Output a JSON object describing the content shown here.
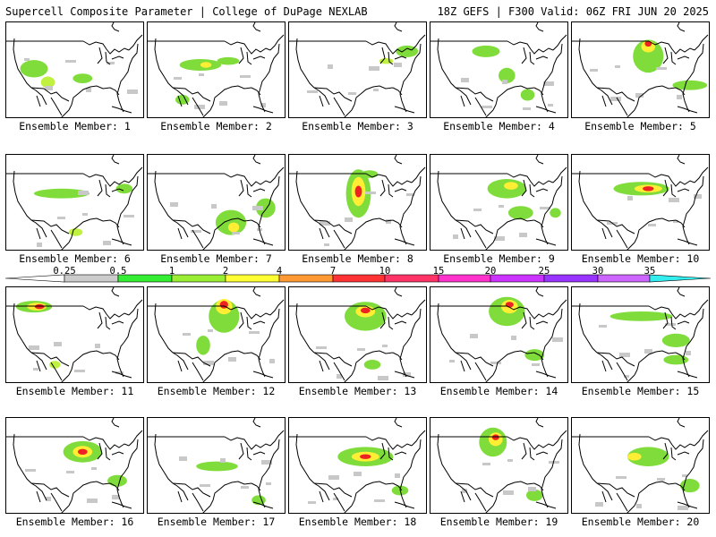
{
  "header": {
    "title": "Supercell Composite Parameter | College of DuPage NEXLAB",
    "run_info": "18Z GEFS | F300 Valid: 06Z FRI JUN 20 2025"
  },
  "members": [
    {
      "label": "Ensemble Member: 1",
      "blobs": [
        [
          0.2,
          0.48,
          0.2,
          0.18,
          "#7fdc3a"
        ],
        [
          0.3,
          0.62,
          0.1,
          0.12,
          "#c0f040"
        ],
        [
          0.55,
          0.58,
          0.14,
          0.1,
          "#7fdc3a"
        ]
      ]
    },
    {
      "label": "Ensemble Member: 2",
      "blobs": [
        [
          0.38,
          0.44,
          0.3,
          0.12,
          "#7fdc3a"
        ],
        [
          0.42,
          0.44,
          0.08,
          0.06,
          "#ffee33"
        ],
        [
          0.58,
          0.4,
          0.16,
          0.08,
          "#7fdc3a"
        ],
        [
          0.25,
          0.8,
          0.1,
          0.1,
          "#7fdc3a"
        ]
      ]
    },
    {
      "label": "Ensemble Member: 3",
      "blobs": [
        [
          0.85,
          0.3,
          0.16,
          0.12,
          "#7fdc3a"
        ],
        [
          0.7,
          0.4,
          0.1,
          0.06,
          "#c0f040"
        ]
      ]
    },
    {
      "label": "Ensemble Member: 4",
      "blobs": [
        [
          0.4,
          0.3,
          0.2,
          0.12,
          "#7fdc3a"
        ],
        [
          0.55,
          0.55,
          0.12,
          0.16,
          "#7fdc3a"
        ],
        [
          0.7,
          0.75,
          0.1,
          0.12,
          "#7fdc3a"
        ]
      ]
    },
    {
      "label": "Ensemble Member: 5",
      "blobs": [
        [
          0.55,
          0.35,
          0.22,
          0.34,
          "#7fdc3a"
        ],
        [
          0.55,
          0.25,
          0.1,
          0.12,
          "#ffee33"
        ],
        [
          0.55,
          0.22,
          0.05,
          0.06,
          "#ee2222"
        ],
        [
          0.85,
          0.65,
          0.25,
          0.1,
          "#7fdc3a"
        ]
      ]
    },
    {
      "label": "Ensemble Member: 6",
      "blobs": [
        [
          0.4,
          0.4,
          0.4,
          0.1,
          "#7fdc3a"
        ],
        [
          0.85,
          0.35,
          0.12,
          0.1,
          "#7fdc3a"
        ],
        [
          0.5,
          0.8,
          0.1,
          0.08,
          "#c0f040"
        ]
      ]
    },
    {
      "label": "Ensemble Member: 7",
      "blobs": [
        [
          0.6,
          0.7,
          0.22,
          0.26,
          "#7fdc3a"
        ],
        [
          0.62,
          0.75,
          0.08,
          0.1,
          "#ffee33"
        ],
        [
          0.85,
          0.55,
          0.14,
          0.2,
          "#7fdc3a"
        ]
      ]
    },
    {
      "label": "Ensemble Member: 8",
      "blobs": [
        [
          0.5,
          0.4,
          0.18,
          0.5,
          "#7fdc3a"
        ],
        [
          0.5,
          0.38,
          0.1,
          0.3,
          "#ffee33"
        ],
        [
          0.5,
          0.38,
          0.05,
          0.12,
          "#ee2222"
        ],
        [
          0.58,
          0.2,
          0.12,
          0.08,
          "#7fdc3a"
        ]
      ]
    },
    {
      "label": "Ensemble Member: 9",
      "blobs": [
        [
          0.55,
          0.35,
          0.28,
          0.2,
          "#7fdc3a"
        ],
        [
          0.58,
          0.32,
          0.1,
          0.08,
          "#ffee33"
        ],
        [
          0.65,
          0.6,
          0.18,
          0.14,
          "#7fdc3a"
        ],
        [
          0.9,
          0.6,
          0.08,
          0.1,
          "#7fdc3a"
        ]
      ]
    },
    {
      "label": "Ensemble Member: 10",
      "blobs": [
        [
          0.5,
          0.35,
          0.4,
          0.14,
          "#7fdc3a"
        ],
        [
          0.55,
          0.35,
          0.2,
          0.08,
          "#ffee33"
        ],
        [
          0.55,
          0.35,
          0.08,
          0.05,
          "#ee2222"
        ]
      ]
    },
    {
      "label": "Ensemble Member: 11",
      "blobs": [
        [
          0.2,
          0.2,
          0.26,
          0.12,
          "#7fdc3a"
        ],
        [
          0.22,
          0.2,
          0.14,
          0.08,
          "#ffee33"
        ],
        [
          0.24,
          0.2,
          0.07,
          0.05,
          "#ee2222"
        ],
        [
          0.35,
          0.8,
          0.08,
          0.08,
          "#c0f040"
        ]
      ]
    },
    {
      "label": "Ensemble Member: 12",
      "blobs": [
        [
          0.55,
          0.3,
          0.22,
          0.34,
          "#7fdc3a"
        ],
        [
          0.55,
          0.2,
          0.12,
          0.16,
          "#ffee33"
        ],
        [
          0.55,
          0.18,
          0.06,
          0.08,
          "#ee2222"
        ],
        [
          0.4,
          0.6,
          0.1,
          0.2,
          "#7fdc3a"
        ]
      ]
    },
    {
      "label": "Ensemble Member: 13",
      "blobs": [
        [
          0.55,
          0.3,
          0.3,
          0.3,
          "#7fdc3a"
        ],
        [
          0.55,
          0.25,
          0.14,
          0.12,
          "#ffee33"
        ],
        [
          0.55,
          0.24,
          0.07,
          0.06,
          "#ee2222"
        ],
        [
          0.6,
          0.8,
          0.12,
          0.1,
          "#7fdc3a"
        ]
      ]
    },
    {
      "label": "Ensemble Member: 14",
      "blobs": [
        [
          0.55,
          0.25,
          0.26,
          0.3,
          "#7fdc3a"
        ],
        [
          0.57,
          0.2,
          0.12,
          0.14,
          "#ffee33"
        ],
        [
          0.57,
          0.18,
          0.06,
          0.06,
          "#ee2222"
        ],
        [
          0.75,
          0.7,
          0.14,
          0.12,
          "#7fdc3a"
        ]
      ]
    },
    {
      "label": "Ensemble Member: 15",
      "blobs": [
        [
          0.5,
          0.3,
          0.45,
          0.1,
          "#7fdc3a"
        ],
        [
          0.75,
          0.55,
          0.2,
          0.14,
          "#7fdc3a"
        ],
        [
          0.75,
          0.75,
          0.18,
          0.1,
          "#7fdc3a"
        ]
      ]
    },
    {
      "label": "Ensemble Member: 16",
      "blobs": [
        [
          0.55,
          0.35,
          0.28,
          0.22,
          "#7fdc3a"
        ],
        [
          0.55,
          0.35,
          0.14,
          0.12,
          "#ffee33"
        ],
        [
          0.55,
          0.35,
          0.07,
          0.06,
          "#ee2222"
        ],
        [
          0.8,
          0.65,
          0.14,
          0.12,
          "#7fdc3a"
        ]
      ]
    },
    {
      "label": "Ensemble Member: 17",
      "blobs": [
        [
          0.5,
          0.5,
          0.3,
          0.1,
          "#7fdc3a"
        ],
        [
          0.8,
          0.85,
          0.1,
          0.1,
          "#7fdc3a"
        ]
      ]
    },
    {
      "label": "Ensemble Member: 18",
      "blobs": [
        [
          0.55,
          0.4,
          0.4,
          0.2,
          "#7fdc3a"
        ],
        [
          0.55,
          0.4,
          0.2,
          0.1,
          "#ffee33"
        ],
        [
          0.55,
          0.4,
          0.08,
          0.05,
          "#ee2222"
        ],
        [
          0.8,
          0.75,
          0.12,
          0.1,
          "#7fdc3a"
        ]
      ]
    },
    {
      "label": "Ensemble Member: 19",
      "blobs": [
        [
          0.45,
          0.25,
          0.2,
          0.3,
          "#7fdc3a"
        ],
        [
          0.47,
          0.22,
          0.1,
          0.14,
          "#ffee33"
        ],
        [
          0.47,
          0.2,
          0.05,
          0.06,
          "#ee2222"
        ],
        [
          0.75,
          0.8,
          0.12,
          0.12,
          "#7fdc3a"
        ]
      ]
    },
    {
      "label": "Ensemble Member: 20",
      "blobs": [
        [
          0.55,
          0.4,
          0.3,
          0.2,
          "#7fdc3a"
        ],
        [
          0.45,
          0.4,
          0.1,
          0.08,
          "#ffee33"
        ],
        [
          0.85,
          0.7,
          0.14,
          0.14,
          "#7fdc3a"
        ]
      ]
    }
  ],
  "colorbar": {
    "labels": [
      "0.25",
      "0.5",
      "1",
      "2",
      "4",
      "7",
      "10",
      "15",
      "20",
      "25",
      "30",
      "35"
    ],
    "colors": [
      "#ffffff",
      "#cccccc",
      "#33ee33",
      "#99ee33",
      "#ffff33",
      "#ff9933",
      "#ff3333",
      "#ff3366",
      "#ff33cc",
      "#cc33ff",
      "#9933ff",
      "#cc66ff",
      "#33eeee"
    ]
  }
}
